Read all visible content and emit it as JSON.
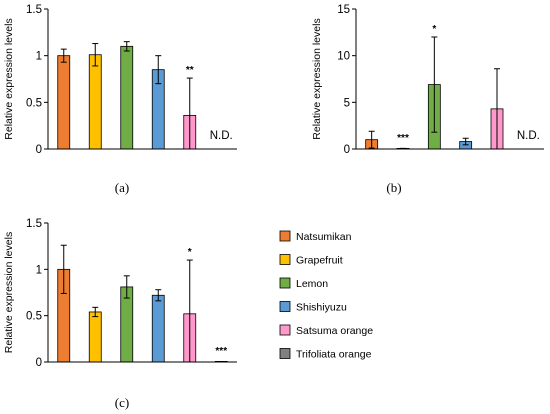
{
  "figure": {
    "panels": [
      "(a)",
      "(b)",
      "(c)"
    ]
  },
  "chart_data": [
    {
      "type": "bar",
      "panel": "(a)",
      "ylabel": "Relative expression levels",
      "ylim": [
        0,
        1.5
      ],
      "yticks": [
        "0",
        "0.5",
        "1",
        "1.5"
      ],
      "categories": [
        "Natsumikan",
        "Grapefruit",
        "Lemon",
        "Shishiyuzu",
        "Satsuma orange",
        "Trifoliata orange"
      ],
      "values": [
        1.0,
        1.01,
        1.1,
        0.85,
        0.36,
        null
      ],
      "errors": [
        0.07,
        0.12,
        0.05,
        0.15,
        0.4,
        null
      ],
      "annotations": [
        "",
        "",
        "",
        "",
        "**",
        "N.D."
      ]
    },
    {
      "type": "bar",
      "panel": "(b)",
      "ylabel": "Relative expression levels",
      "ylim": [
        0,
        15
      ],
      "yticks": [
        "0",
        "5",
        "10",
        "15"
      ],
      "categories": [
        "Natsumikan",
        "Grapefruit",
        "Lemon",
        "Shishiyuzu",
        "Satsuma orange",
        "Trifoliata orange"
      ],
      "values": [
        1.0,
        0.05,
        6.9,
        0.8,
        4.3,
        null
      ],
      "errors": [
        0.9,
        0.02,
        5.1,
        0.35,
        4.3,
        null
      ],
      "annotations": [
        "",
        "***",
        "*",
        "",
        "",
        "N.D."
      ]
    },
    {
      "type": "bar",
      "panel": "(c)",
      "ylabel": "Relative expression levels",
      "ylim": [
        0,
        1.5
      ],
      "yticks": [
        "0",
        "0.5",
        "1",
        "1.5"
      ],
      "categories": [
        "Natsumikan",
        "Grapefruit",
        "Lemon",
        "Shishiyuzu",
        "Satsuma orange",
        "Trifoliata orange"
      ],
      "values": [
        1.0,
        0.54,
        0.81,
        0.72,
        0.52,
        0.005
      ],
      "errors": [
        0.26,
        0.05,
        0.12,
        0.06,
        0.58,
        0.0
      ],
      "annotations": [
        "",
        "",
        "",
        "",
        "*",
        "***"
      ]
    }
  ],
  "legend": {
    "items": [
      {
        "label": "Natsumikan",
        "color": "#ED7D31"
      },
      {
        "label": "Grapefruit",
        "color": "#FFC000"
      },
      {
        "label": "Lemon",
        "color": "#70AD47"
      },
      {
        "label": "Shishiyuzu",
        "color": "#5B9BD5"
      },
      {
        "label": "Satsuma orange",
        "color": "#FF99CC"
      },
      {
        "label": "Trifoliata orange",
        "color": "#808080"
      }
    ]
  }
}
